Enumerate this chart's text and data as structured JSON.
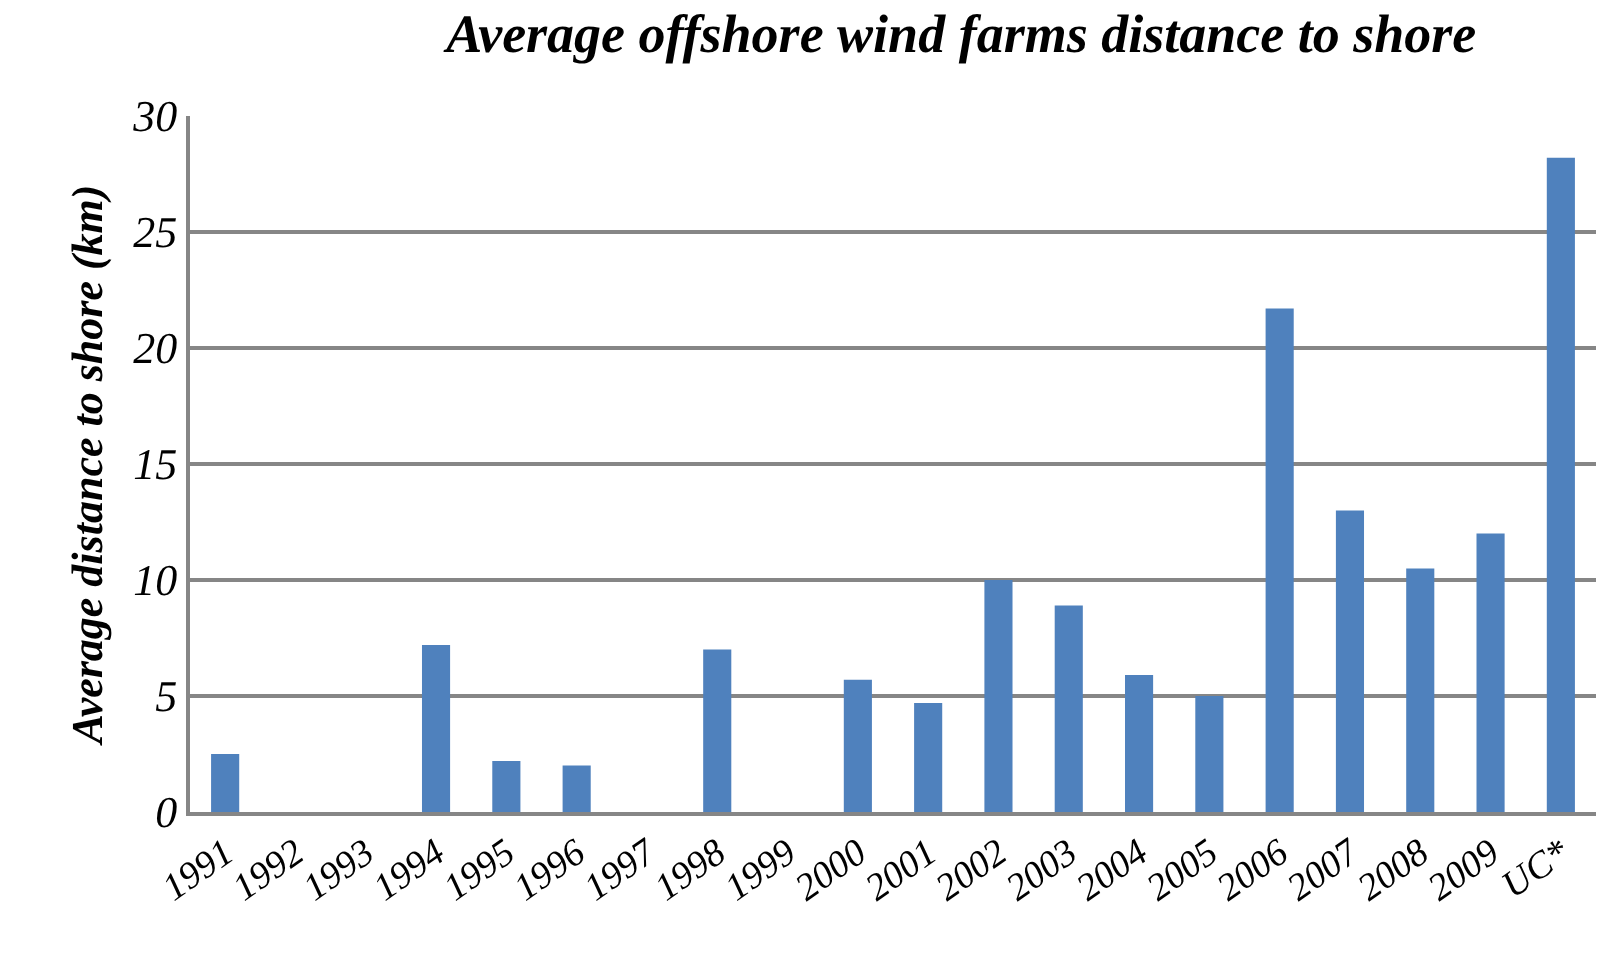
{
  "chart_data": {
    "type": "bar",
    "title": "Average offshore wind farms distance to shore",
    "ylabel": "Average distance to shore (km)",
    "categories": [
      "1991",
      "1992",
      "1993",
      "1994",
      "1995",
      "1996",
      "1997",
      "1998",
      "1999",
      "2000",
      "2001",
      "2002",
      "2003",
      "2004",
      "2005",
      "2006",
      "2007",
      "2008",
      "2009",
      "UC*"
    ],
    "values": [
      2.5,
      null,
      null,
      7.2,
      2.2,
      2.0,
      null,
      7.0,
      null,
      5.7,
      4.7,
      10.0,
      8.9,
      5.9,
      5.0,
      21.7,
      13.0,
      10.5,
      12.0,
      28.2
    ],
    "color": "#4f81bd",
    "ylim": [
      0,
      30
    ],
    "yticks": [
      0,
      5,
      10,
      15,
      20,
      25,
      30
    ],
    "grid": "y"
  }
}
